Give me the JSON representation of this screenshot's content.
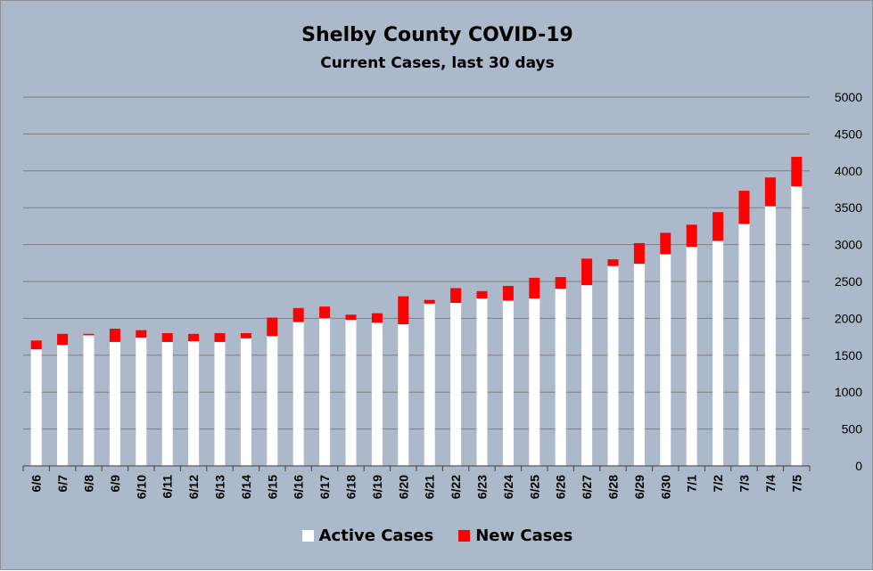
{
  "chart_data": {
    "type": "bar",
    "stacked": true,
    "title": "Shelby County COVID-19",
    "subtitle": "Current Cases, last 30 days",
    "categories": [
      "6/6",
      "6/7",
      "6/8",
      "6/9",
      "6/10",
      "6/11",
      "6/12",
      "6/13",
      "6/14",
      "6/15",
      "6/16",
      "6/17",
      "6/18",
      "6/19",
      "6/20",
      "6/21",
      "6/22",
      "6/23",
      "6/24",
      "6/25",
      "6/26",
      "6/27",
      "6/28",
      "6/29",
      "6/30",
      "7/1",
      "7/2",
      "7/3",
      "7/4",
      "7/5"
    ],
    "series": [
      {
        "name": "Active Cases",
        "color": "#ffffff",
        "values": [
          1580,
          1640,
          1770,
          1680,
          1740,
          1680,
          1690,
          1680,
          1730,
          1760,
          1950,
          2000,
          1980,
          1940,
          1920,
          2200,
          2210,
          2270,
          2240,
          2270,
          2400,
          2450,
          2710,
          2740,
          2870,
          2970,
          3050,
          3280,
          3520,
          3790
        ]
      },
      {
        "name": "New Cases",
        "color": "#ff0000",
        "values": [
          120,
          150,
          20,
          180,
          100,
          120,
          100,
          120,
          70,
          250,
          190,
          160,
          70,
          130,
          380,
          50,
          200,
          100,
          200,
          280,
          160,
          360,
          90,
          280,
          290,
          300,
          390,
          450,
          390,
          400
        ]
      }
    ],
    "y_axis": {
      "min": 0,
      "max": 5000,
      "step": 500,
      "side": "right",
      "ticks": [
        "0",
        "500",
        "1000",
        "1500",
        "2000",
        "2500",
        "3000",
        "3500",
        "4000",
        "4500",
        "5000"
      ]
    },
    "xlabel": "",
    "ylabel": "",
    "grid": true,
    "legend_position": "bottom",
    "background_color": "#acb9ca",
    "gridline_color": "#7f7f7f"
  }
}
